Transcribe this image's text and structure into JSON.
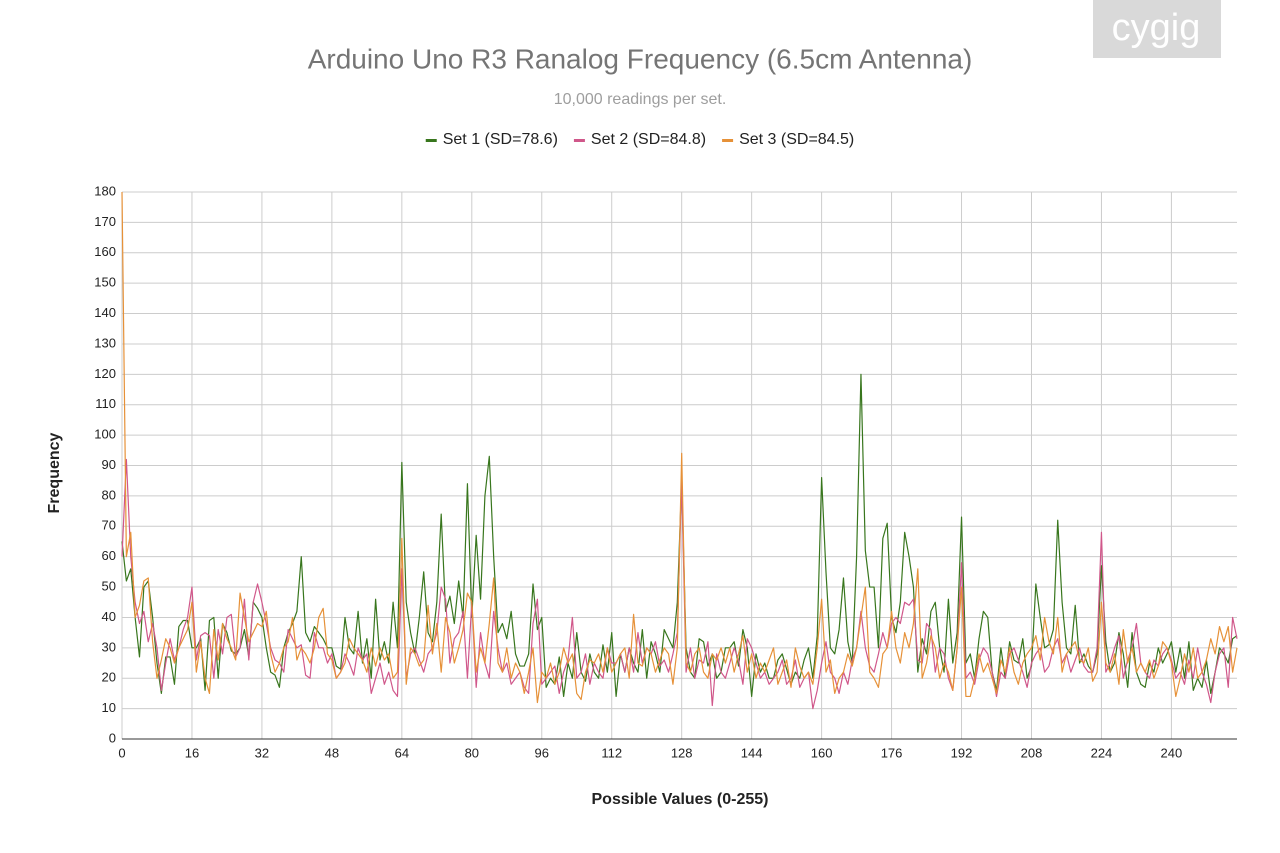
{
  "chart_data": {
    "type": "line",
    "title": "Arduino Uno R3 Ranalog Frequency (6.5cm Antenna)",
    "subtitle": "10,000 readings per set.",
    "watermark": "cygig",
    "xlabel": "Possible Values (0-255)",
    "ylabel": "Frequency",
    "grid": true,
    "legend": "top",
    "xlim": [
      0,
      255
    ],
    "ylim": [
      0,
      180
    ],
    "xticks": [
      0,
      16,
      32,
      48,
      64,
      80,
      96,
      112,
      128,
      144,
      160,
      176,
      192,
      208,
      224,
      240
    ],
    "yticks": [
      0,
      10,
      20,
      30,
      40,
      50,
      60,
      70,
      80,
      90,
      100,
      110,
      120,
      130,
      140,
      150,
      160,
      170,
      180
    ],
    "x": [
      0,
      1,
      2,
      3,
      4,
      5,
      6,
      7,
      8,
      9,
      10,
      11,
      12,
      13,
      14,
      15,
      16,
      17,
      18,
      19,
      20,
      21,
      22,
      23,
      24,
      25,
      26,
      27,
      28,
      29,
      30,
      31,
      32,
      33,
      34,
      35,
      36,
      37,
      38,
      39,
      40,
      41,
      42,
      43,
      44,
      45,
      46,
      47,
      48,
      49,
      50,
      51,
      52,
      53,
      54,
      55,
      56,
      57,
      58,
      59,
      60,
      61,
      62,
      63,
      64,
      65,
      66,
      67,
      68,
      69,
      70,
      71,
      72,
      73,
      74,
      75,
      76,
      77,
      78,
      79,
      80,
      81,
      82,
      83,
      84,
      85,
      86,
      87,
      88,
      89,
      90,
      91,
      92,
      93,
      94,
      95,
      96,
      97,
      98,
      99,
      100,
      101,
      102,
      103,
      104,
      105,
      106,
      107,
      108,
      109,
      110,
      111,
      112,
      113,
      114,
      115,
      116,
      117,
      118,
      119,
      120,
      121,
      122,
      123,
      124,
      125,
      126,
      127,
      128,
      129,
      130,
      131,
      132,
      133,
      134,
      135,
      136,
      137,
      138,
      139,
      140,
      141,
      142,
      143,
      144,
      145,
      146,
      147,
      148,
      149,
      150,
      151,
      152,
      153,
      154,
      155,
      156,
      157,
      158,
      159,
      160,
      161,
      162,
      163,
      164,
      165,
      166,
      167,
      168,
      169,
      170,
      171,
      172,
      173,
      174,
      175,
      176,
      177,
      178,
      179,
      180,
      181,
      182,
      183,
      184,
      185,
      186,
      187,
      188,
      189,
      190,
      191,
      192,
      193,
      194,
      195,
      196,
      197,
      198,
      199,
      200,
      201,
      202,
      203,
      204,
      205,
      206,
      207,
      208,
      209,
      210,
      211,
      212,
      213,
      214,
      215,
      216,
      217,
      218,
      219,
      220,
      221,
      222,
      223,
      224,
      225,
      226,
      227,
      228,
      229,
      230,
      231,
      232,
      233,
      234,
      235,
      236,
      237,
      238,
      239,
      240,
      241,
      242,
      243,
      244,
      245,
      246,
      247,
      248,
      249,
      250,
      251,
      252,
      253,
      254,
      255
    ],
    "series": [
      {
        "name": "Set 1 (SD=78.6)",
        "color": "#38761d",
        "values": [
          65,
          52,
          56,
          40,
          27,
          50,
          52,
          40,
          25,
          15,
          27,
          27,
          18,
          37,
          39,
          39,
          30,
          30,
          33,
          16,
          39,
          40,
          20,
          38,
          35,
          29,
          28,
          30,
          36,
          27,
          45,
          43,
          40,
          30,
          22,
          21,
          17,
          30,
          35,
          38,
          42,
          60,
          35,
          32,
          37,
          35,
          33,
          30,
          30,
          24,
          23,
          40,
          30,
          28,
          42,
          25,
          33,
          20,
          46,
          26,
          32,
          25,
          45,
          30,
          91,
          45,
          35,
          28,
          40,
          55,
          35,
          32,
          45,
          74,
          42,
          47,
          38,
          52,
          40,
          84,
          40,
          67,
          46,
          80,
          93,
          60,
          35,
          38,
          33,
          42,
          28,
          24,
          24,
          28,
          51,
          36,
          40,
          17,
          20,
          18,
          27,
          14,
          25,
          20,
          35,
          22,
          19,
          28,
          22,
          20,
          31,
          22,
          35,
          14,
          28,
          22,
          30,
          25,
          22,
          36,
          20,
          32,
          28,
          22,
          36,
          33,
          30,
          45,
          85,
          30,
          22,
          20,
          33,
          32,
          24,
          28,
          20,
          22,
          30,
          30,
          32,
          24,
          36,
          30,
          14,
          28,
          22,
          25,
          20,
          20,
          26,
          28,
          23,
          18,
          22,
          20,
          26,
          30,
          20,
          34,
          86,
          55,
          30,
          28,
          36,
          53,
          32,
          25,
          60,
          120,
          62,
          50,
          50,
          30,
          66,
          71,
          40,
          35,
          45,
          68,
          60,
          50,
          22,
          33,
          28,
          42,
          45,
          30,
          22,
          46,
          25,
          35,
          73,
          25,
          28,
          20,
          33,
          42,
          40,
          22,
          16,
          30,
          20,
          32,
          26,
          25,
          33,
          20,
          24,
          51,
          40,
          30,
          31,
          36,
          72,
          45,
          30,
          28,
          44,
          25,
          28,
          24,
          22,
          28,
          57,
          32,
          22,
          25,
          35,
          28,
          17,
          35,
          22,
          18,
          17,
          25,
          22,
          30,
          25,
          28,
          32,
          22,
          30,
          20,
          32,
          16,
          20,
          17,
          26,
          15,
          22,
          30,
          28,
          25,
          33,
          34
        ]
      },
      {
        "name": "Set 2 (SD=84.8)",
        "color": "#d0578a",
        "values": [
          60,
          92,
          60,
          45,
          38,
          42,
          32,
          38,
          30,
          16,
          25,
          33,
          26,
          30,
          36,
          40,
          50,
          26,
          34,
          35,
          34,
          20,
          36,
          28,
          40,
          41,
          27,
          30,
          46,
          26,
          45,
          51,
          45,
          38,
          30,
          26,
          25,
          22,
          36,
          33,
          30,
          31,
          21,
          20,
          35,
          30,
          30,
          25,
          28,
          20,
          22,
          28,
          25,
          21,
          30,
          26,
          28,
          15,
          20,
          25,
          18,
          22,
          16,
          14,
          56,
          20,
          28,
          30,
          26,
          22,
          28,
          30,
          35,
          50,
          46,
          25,
          33,
          35,
          42,
          20,
          45,
          17,
          35,
          25,
          20,
          42,
          30,
          22,
          25,
          18,
          20,
          22,
          17,
          15,
          38,
          46,
          18,
          20,
          22,
          24,
          15,
          22,
          26,
          40,
          20,
          22,
          28,
          18,
          25,
          22,
          20,
          30,
          25,
          25,
          28,
          22,
          30,
          22,
          35,
          25,
          30,
          28,
          32,
          24,
          26,
          22,
          28,
          35,
          85,
          22,
          30,
          20,
          26,
          25,
          32,
          11,
          28,
          22,
          20,
          25,
          30,
          26,
          18,
          33,
          30,
          25,
          20,
          22,
          18,
          20,
          22,
          26,
          18,
          20,
          26,
          17,
          20,
          22,
          10,
          16,
          25,
          32,
          22,
          20,
          15,
          22,
          18,
          26,
          30,
          42,
          30,
          24,
          22,
          28,
          35,
          30,
          38,
          40,
          38,
          45,
          44,
          46,
          26,
          25,
          38,
          36,
          22,
          30,
          28,
          20,
          16,
          30,
          58,
          20,
          22,
          18,
          26,
          30,
          28,
          22,
          14,
          22,
          20,
          28,
          30,
          26,
          22,
          17,
          25,
          28,
          30,
          22,
          24,
          30,
          33,
          25,
          28,
          22,
          26,
          30,
          24,
          22,
          22,
          30,
          68,
          22,
          25,
          30,
          34,
          20,
          26,
          30,
          38,
          25,
          22,
          20,
          26,
          24,
          28,
          30,
          26,
          20,
          22,
          18,
          26,
          20,
          30,
          22,
          18,
          12,
          22,
          28,
          30,
          17,
          40,
          33
        ]
      },
      {
        "name": "Set 3 (SD=84.5)",
        "color": "#e69138",
        "values": [
          180,
          60,
          68,
          40,
          44,
          52,
          53,
          32,
          20,
          26,
          33,
          30,
          25,
          30,
          33,
          36,
          45,
          22,
          32,
          20,
          15,
          36,
          26,
          38,
          33,
          30,
          26,
          48,
          40,
          32,
          35,
          38,
          37,
          42,
          28,
          22,
          25,
          30,
          32,
          40,
          26,
          30,
          28,
          25,
          30,
          40,
          43,
          28,
          26,
          20,
          22,
          25,
          33,
          30,
          28,
          26,
          22,
          30,
          24,
          30,
          26,
          28,
          20,
          22,
          66,
          18,
          30,
          28,
          24,
          26,
          44,
          28,
          38,
          22,
          40,
          35,
          25,
          30,
          36,
          48,
          45,
          22,
          30,
          25,
          38,
          53,
          25,
          22,
          30,
          20,
          25,
          22,
          15,
          22,
          30,
          12,
          22,
          20,
          25,
          18,
          22,
          30,
          25,
          28,
          15,
          13,
          22,
          26,
          25,
          28,
          22,
          30,
          22,
          25,
          28,
          30,
          20,
          41,
          25,
          24,
          30,
          28,
          22,
          26,
          30,
          28,
          18,
          30,
          94,
          25,
          22,
          28,
          30,
          22,
          20,
          28,
          26,
          30,
          25,
          30,
          22,
          28,
          34,
          22,
          28,
          20,
          25,
          22,
          26,
          30,
          18,
          22,
          26,
          17,
          30,
          24,
          20,
          22,
          18,
          30,
          46,
          22,
          26,
          15,
          20,
          22,
          28,
          24,
          30,
          40,
          50,
          22,
          20,
          17,
          28,
          30,
          42,
          30,
          25,
          35,
          30,
          38,
          56,
          20,
          25,
          34,
          30,
          20,
          25,
          22,
          16,
          30,
          50,
          14,
          14,
          20,
          28,
          22,
          25,
          20,
          15,
          26,
          22,
          30,
          22,
          18,
          25,
          28,
          30,
          34,
          26,
          40,
          32,
          28,
          40,
          22,
          28,
          30,
          32,
          26,
          25,
          30,
          19,
          22,
          45,
          25,
          22,
          28,
          18,
          36,
          25,
          30,
          22,
          25,
          22,
          26,
          20,
          24,
          32,
          30,
          25,
          14,
          20,
          28,
          22,
          30,
          20,
          22,
          26,
          33,
          28,
          37,
          32,
          37,
          22,
          30
        ]
      }
    ]
  }
}
